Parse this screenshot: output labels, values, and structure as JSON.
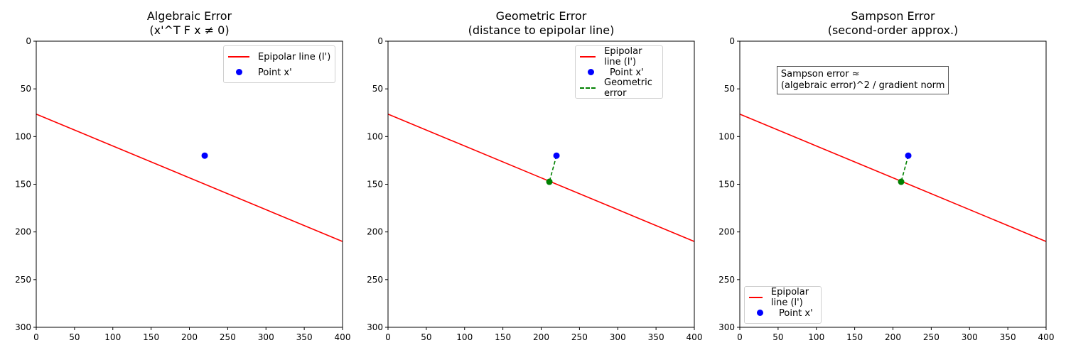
{
  "chart_data": [
    {
      "type": "line",
      "title": "Algebraic Error\n(x'^T F x ≠ 0)",
      "xlim": [
        0,
        400
      ],
      "ylim": [
        300,
        0
      ],
      "y_inverted": true,
      "xticks": [
        0,
        50,
        100,
        150,
        200,
        250,
        300,
        350,
        400
      ],
      "yticks": [
        0,
        50,
        100,
        150,
        200,
        250,
        300
      ],
      "grid": false,
      "legend_position": "upper right",
      "series": [
        {
          "name": "Epipolar line (l')",
          "kind": "line",
          "color": "#ff0000",
          "x": [
            0,
            400
          ],
          "y": [
            76.5,
            210
          ]
        },
        {
          "name": "Point x'",
          "kind": "scatter",
          "color": "#0000ff",
          "x": [
            220
          ],
          "y": [
            120
          ]
        }
      ]
    },
    {
      "type": "line",
      "title": "Geometric Error\n(distance to epipolar line)",
      "xlim": [
        0,
        400
      ],
      "ylim": [
        300,
        0
      ],
      "y_inverted": true,
      "xticks": [
        0,
        50,
        100,
        150,
        200,
        250,
        300,
        350,
        400
      ],
      "yticks": [
        0,
        50,
        100,
        150,
        200,
        250,
        300
      ],
      "grid": false,
      "legend_position": "upper right",
      "series": [
        {
          "name": "Epipolar line (l')",
          "kind": "line",
          "color": "#ff0000",
          "x": [
            0,
            400
          ],
          "y": [
            76.5,
            210
          ]
        },
        {
          "name": "Point x'",
          "kind": "scatter",
          "color": "#0000ff",
          "x": [
            220
          ],
          "y": [
            120
          ]
        },
        {
          "name": "Geometric error",
          "kind": "dashed-line",
          "color": "#008000",
          "x": [
            220,
            210.7
          ],
          "y": [
            120,
            147.4
          ]
        },
        {
          "name": "",
          "kind": "scatter",
          "color": "#008000",
          "x": [
            210.7
          ],
          "y": [
            147.4
          ]
        }
      ]
    },
    {
      "type": "line",
      "title": "Sampson Error\n(second-order approx.)",
      "xlim": [
        0,
        400
      ],
      "ylim": [
        300,
        0
      ],
      "y_inverted": true,
      "xticks": [
        0,
        50,
        100,
        150,
        200,
        250,
        300,
        350,
        400
      ],
      "yticks": [
        0,
        50,
        100,
        150,
        200,
        250,
        300
      ],
      "grid": false,
      "legend_position": "lower left",
      "annotation": "Sampson error ≈\n(algebraic error)^2 / gradient norm",
      "series": [
        {
          "name": "Epipolar line (l')",
          "kind": "line",
          "color": "#ff0000",
          "x": [
            0,
            400
          ],
          "y": [
            76.5,
            210
          ]
        },
        {
          "name": "Point x'",
          "kind": "scatter",
          "color": "#0000ff",
          "x": [
            220
          ],
          "y": [
            120
          ]
        },
        {
          "name": "",
          "kind": "dashed-line",
          "color": "#008000",
          "x": [
            220,
            210.7
          ],
          "y": [
            120,
            147.4
          ]
        },
        {
          "name": "",
          "kind": "scatter",
          "color": "#008000",
          "x": [
            210.7
          ],
          "y": [
            147.4
          ]
        }
      ]
    }
  ],
  "panels": [
    {
      "title": "Algebraic Error\n(x'^T F x ≠ 0)",
      "legend": [
        "Epipolar line (l')",
        "Point x'"
      ]
    },
    {
      "title": "Geometric Error\n(distance to epipolar line)",
      "legend": [
        "Epipolar line (l')",
        "Point x'",
        "Geometric error"
      ]
    },
    {
      "title": "Sampson Error\n(second-order approx.)",
      "legend": [
        "Epipolar line (l')",
        "Point x'"
      ],
      "annotation": "Sampson error ≈\n(algebraic error)^2 / gradient norm"
    }
  ],
  "ticks": {
    "x": [
      "0",
      "50",
      "100",
      "150",
      "200",
      "250",
      "300",
      "350",
      "400"
    ],
    "y": [
      "0",
      "50",
      "100",
      "150",
      "200",
      "250",
      "300"
    ]
  },
  "colors": {
    "line": "#ff0000",
    "point": "#0000ff",
    "error": "#008000"
  }
}
